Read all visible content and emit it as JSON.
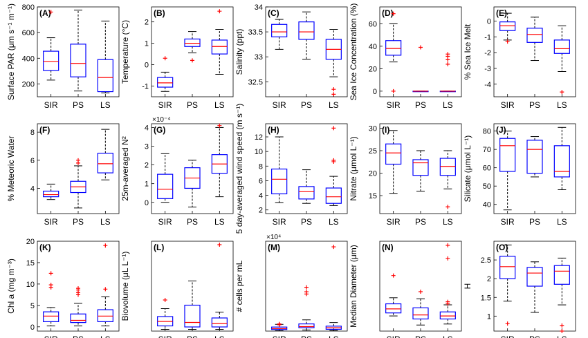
{
  "figure": {
    "colors": {
      "box": "#0000ff",
      "median": "#ff0000",
      "outlier": "#ff0000",
      "whisker": "#000000",
      "axis": "#000000"
    }
  },
  "chart_data": [
    {
      "id": "A",
      "label": "(A)",
      "type": "box",
      "ylabel": "Surface PAR (μm s⁻¹ m⁻¹)",
      "categories": [
        "SIR",
        "PS",
        "LS"
      ],
      "ylim": [
        100,
        800
      ],
      "yticks": [
        200,
        400,
        600,
        800
      ],
      "boxes": [
        {
          "whislo": 230,
          "q1": 305,
          "med": 375,
          "q3": 455,
          "whishi": 560,
          "fliers": [
            760
          ]
        },
        {
          "whislo": 145,
          "q1": 255,
          "med": 360,
          "q3": 510,
          "whishi": 775,
          "fliers": []
        },
        {
          "whislo": 130,
          "q1": 140,
          "med": 250,
          "q3": 390,
          "whishi": 690,
          "fliers": []
        }
      ]
    },
    {
      "id": "B",
      "label": "(B)",
      "type": "box",
      "ylabel": "Temperature (°C)",
      "categories": [
        "SIR",
        "PS",
        "LS"
      ],
      "ylim": [
        -1.5,
        2.7
      ],
      "yticks": [
        -1,
        0,
        1,
        2
      ],
      "boxes": [
        {
          "whislo": -1.25,
          "q1": -1.05,
          "med": -0.85,
          "q3": -0.6,
          "whishi": -0.35,
          "fliers": [
            0.3
          ]
        },
        {
          "whislo": 0.55,
          "q1": 0.85,
          "med": 1.0,
          "q3": 1.2,
          "whishi": 1.55,
          "fliers": [
            0.2
          ]
        },
        {
          "whislo": -0.45,
          "q1": 0.5,
          "med": 0.85,
          "q3": 1.15,
          "whishi": 1.65,
          "fliers": [
            2.5
          ]
        }
      ]
    },
    {
      "id": "C",
      "label": "(C)",
      "type": "box",
      "ylabel": "Salinity (ppt)",
      "categories": [
        "SIR",
        "PS",
        "LS"
      ],
      "ylim": [
        32.2,
        34
      ],
      "yticks": [
        32.5,
        33,
        33.5,
        34
      ],
      "boxes": [
        {
          "whislo": 33.15,
          "q1": 33.4,
          "med": 33.5,
          "q3": 33.65,
          "whishi": 33.75,
          "fliers": []
        },
        {
          "whislo": 32.95,
          "q1": 33.35,
          "med": 33.5,
          "q3": 33.7,
          "whishi": 33.9,
          "fliers": []
        },
        {
          "whislo": 32.6,
          "q1": 32.95,
          "med": 33.15,
          "q3": 33.35,
          "whishi": 33.55,
          "fliers": [
            32.35,
            32.25
          ]
        }
      ]
    },
    {
      "id": "D",
      "label": "(D)",
      "type": "box",
      "ylabel": "Sea Ice Concentration (%)",
      "categories": [
        "SIR",
        "PS",
        "LS"
      ],
      "ylim": [
        -5,
        75
      ],
      "yticks": [
        0,
        20,
        40,
        60
      ],
      "boxes": [
        {
          "whislo": 26,
          "q1": 32,
          "med": 38,
          "q3": 45,
          "whishi": 60,
          "fliers": [
            69,
            0
          ]
        },
        {
          "whislo": 0,
          "q1": 0,
          "med": 0,
          "q3": 0,
          "whishi": 0,
          "fliers": [
            39
          ]
        },
        {
          "whislo": 0,
          "q1": 0,
          "med": 0,
          "q3": 0,
          "whishi": 0,
          "fliers": [
            33,
            31,
            28,
            24
          ]
        }
      ]
    },
    {
      "id": "E",
      "label": "(E)",
      "type": "box",
      "ylabel": "% Sea Ice Melt",
      "categories": [
        "SIR",
        "PS",
        "LS"
      ],
      "ylim": [
        -4.8,
        0.9
      ],
      "yticks": [
        -4,
        -3,
        -2,
        -1,
        0
      ],
      "boxes": [
        {
          "whislo": -1.2,
          "q1": -0.6,
          "med": -0.3,
          "q3": -0.05,
          "whishi": 0.5,
          "fliers": [
            -1.3
          ]
        },
        {
          "whislo": -2.5,
          "q1": -1.35,
          "med": -0.85,
          "q3": -0.45,
          "whishi": 0.25,
          "fliers": []
        },
        {
          "whislo": -3.2,
          "q1": -2.05,
          "med": -1.75,
          "q3": -1.2,
          "whishi": -0.3,
          "fliers": [
            -4.5
          ]
        }
      ]
    },
    {
      "id": "F",
      "label": "(F)",
      "type": "box",
      "ylabel": "% Meteoric Water",
      "categories": [
        "SIR",
        "PS",
        "LS"
      ],
      "ylim": [
        2.2,
        8.6
      ],
      "yticks": [
        4,
        6,
        8
      ],
      "boxes": [
        {
          "whislo": 3.2,
          "q1": 3.4,
          "med": 3.55,
          "q3": 3.8,
          "whishi": 4.3,
          "fliers": []
        },
        {
          "whislo": 2.6,
          "q1": 3.7,
          "med": 4.1,
          "q3": 4.5,
          "whishi": 5.6,
          "fliers": [
            6.0,
            5.8
          ]
        },
        {
          "whislo": 4.6,
          "q1": 5.1,
          "med": 5.75,
          "q3": 6.5,
          "whishi": 8.2,
          "fliers": []
        }
      ]
    },
    {
      "id": "G",
      "label": "(G)",
      "type": "box",
      "ylabel": "25m-averaged N²",
      "multiplier": "×10⁻⁴",
      "categories": [
        "SIR",
        "PS",
        "LS"
      ],
      "ylim": [
        -0.6,
        4.2
      ],
      "yticks": [
        0,
        1,
        2,
        3,
        4
      ],
      "boxes": [
        {
          "whislo": 0.0,
          "q1": 0.2,
          "med": 0.7,
          "q3": 1.5,
          "whishi": 2.6,
          "fliers": []
        },
        {
          "whislo": -0.25,
          "q1": 0.75,
          "med": 1.3,
          "q3": 1.85,
          "whishi": 2.25,
          "fliers": []
        },
        {
          "whislo": 0.3,
          "q1": 1.55,
          "med": 2.05,
          "q3": 2.55,
          "whishi": 4.0,
          "fliers": [
            4.1
          ]
        }
      ]
    },
    {
      "id": "H",
      "label": "(H)",
      "type": "box",
      "ylabel": "5 day-averaged wind speed (m s⁻¹)",
      "categories": [
        "SIR",
        "PS",
        "LS"
      ],
      "ylim": [
        1.5,
        13.8
      ],
      "yticks": [
        2,
        4,
        6,
        8,
        10,
        12
      ],
      "boxes": [
        {
          "whislo": 3.0,
          "q1": 4.2,
          "med": 6.2,
          "q3": 7.6,
          "whishi": 12.0,
          "fliers": []
        },
        {
          "whislo": 2.9,
          "q1": 3.5,
          "med": 4.5,
          "q3": 5.2,
          "whishi": 7.5,
          "fliers": []
        },
        {
          "whislo": 2.6,
          "q1": 2.9,
          "med": 3.8,
          "q3": 5.0,
          "whishi": 6.6,
          "fliers": [
            13.2,
            8.8,
            8.6
          ]
        }
      ]
    },
    {
      "id": "I",
      "label": "(I)",
      "type": "box",
      "ylabel": "Nitrate (μmol L⁻¹)",
      "categories": [
        "SIR",
        "PS",
        "LS"
      ],
      "ylim": [
        11,
        31
      ],
      "yticks": [
        15,
        20,
        25,
        30
      ],
      "boxes": [
        {
          "whislo": 15.5,
          "q1": 22.0,
          "med": 24.5,
          "q3": 26.5,
          "whishi": 29.5,
          "fliers": []
        },
        {
          "whislo": 16.0,
          "q1": 19.5,
          "med": 22.3,
          "q3": 23.0,
          "whishi": 25.0,
          "fliers": []
        },
        {
          "whislo": 16.5,
          "q1": 19.5,
          "med": 21.5,
          "q3": 23.3,
          "whishi": 25.0,
          "fliers": [
            12.5
          ]
        }
      ]
    },
    {
      "id": "J",
      "label": "(J)",
      "type": "box",
      "ylabel": "Silicate (μmol L⁻¹)",
      "categories": [
        "SIR",
        "PS",
        "LS"
      ],
      "ylim": [
        35,
        84
      ],
      "yticks": [
        40,
        50,
        60,
        70,
        80
      ],
      "boxes": [
        {
          "whislo": 37,
          "q1": 58,
          "med": 72,
          "q3": 76,
          "whishi": 80,
          "fliers": []
        },
        {
          "whislo": 55,
          "q1": 57,
          "med": 70,
          "q3": 75,
          "whishi": 77,
          "fliers": []
        },
        {
          "whislo": 48,
          "q1": 55,
          "med": 58,
          "q3": 72,
          "whishi": 82,
          "fliers": []
        }
      ]
    },
    {
      "id": "K",
      "label": "(K)",
      "type": "box",
      "ylabel": "Chl a (mg m⁻³)",
      "categories": [
        "SIR",
        "PS",
        "LS"
      ],
      "ylim": [
        -1,
        20
      ],
      "yticks": [
        0,
        5,
        10,
        15,
        20
      ],
      "boxes": [
        {
          "whislo": 0.2,
          "q1": 1.2,
          "med": 2.5,
          "q3": 3.5,
          "whishi": 4.5,
          "fliers": [
            12.5,
            9.8,
            9.2
          ]
        },
        {
          "whislo": 0.2,
          "q1": 1.0,
          "med": 1.5,
          "q3": 3.0,
          "whishi": 5.5,
          "fliers": [
            9.0,
            8.6,
            8.0,
            7.5
          ]
        },
        {
          "whislo": 0.2,
          "q1": 1.2,
          "med": 2.5,
          "q3": 4.0,
          "whishi": 7.0,
          "fliers": [
            19.0,
            8.8
          ]
        }
      ]
    },
    {
      "id": "L",
      "label": "(L)",
      "type": "box",
      "ylabel": "Biovolume (μL L⁻¹)",
      "categories": [
        "SIR",
        "PS",
        "LS"
      ],
      "ylim": [
        0,
        2.6
      ],
      "yticks": [],
      "boxes": [
        {
          "whislo": 0.05,
          "q1": 0.15,
          "med": 0.28,
          "q3": 0.42,
          "whishi": 0.65,
          "fliers": [
            0.9
          ]
        },
        {
          "whislo": 0.05,
          "q1": 0.12,
          "med": 0.25,
          "q3": 0.75,
          "whishi": 1.45,
          "fliers": []
        },
        {
          "whislo": 0.05,
          "q1": 0.12,
          "med": 0.22,
          "q3": 0.38,
          "whishi": 0.55,
          "fliers": [
            2.5
          ]
        }
      ]
    },
    {
      "id": "M",
      "label": "(M)",
      "type": "box",
      "ylabel": "# cells per mL",
      "multiplier": "×10⁴",
      "categories": [
        "SIR",
        "PS",
        "LS"
      ],
      "ylim": [
        0,
        4
      ],
      "yticks": [],
      "boxes": [
        {
          "whislo": 0.02,
          "q1": 0.07,
          "med": 0.11,
          "q3": 0.18,
          "whishi": 0.3,
          "fliers": [
            0.32,
            0.28
          ]
        },
        {
          "whislo": 0.05,
          "q1": 0.15,
          "med": 0.2,
          "q3": 0.32,
          "whishi": 0.5,
          "fliers": [
            1.95,
            1.75,
            1.65
          ]
        },
        {
          "whislo": 0.03,
          "q1": 0.08,
          "med": 0.15,
          "q3": 0.22,
          "whishi": 0.38,
          "fliers": [
            3.75
          ]
        }
      ]
    },
    {
      "id": "N",
      "label": "(N)",
      "type": "box",
      "ylabel": "Median Diameter (μm)",
      "categories": [
        "SIR",
        "PS",
        "LS"
      ],
      "ylim": [
        4.3,
        13.2
      ],
      "yticks": [],
      "boxes": [
        {
          "whislo": 5.8,
          "q1": 6.1,
          "med": 6.5,
          "q3": 7.0,
          "whishi": 7.6,
          "fliers": [
            9.8
          ]
        },
        {
          "whislo": 4.9,
          "q1": 5.5,
          "med": 5.9,
          "q3": 6.6,
          "whishi": 7.5,
          "fliers": [
            8.2
          ]
        },
        {
          "whislo": 5.0,
          "q1": 5.5,
          "med": 5.8,
          "q3": 6.2,
          "whishi": 6.9,
          "fliers": [
            12.8,
            11.5,
            7.2,
            7.0
          ]
        }
      ]
    },
    {
      "id": "O",
      "label": "(O)",
      "type": "box",
      "ylabel": "H",
      "categories": [
        "SIR",
        "PS",
        "LS"
      ],
      "ylim": [
        0.6,
        3.0
      ],
      "yticks": [
        1,
        1.5,
        2,
        2.5
      ],
      "boxes": [
        {
          "whislo": 1.4,
          "q1": 2.0,
          "med": 2.32,
          "q3": 2.6,
          "whishi": 2.9,
          "fliers": [
            0.8
          ]
        },
        {
          "whislo": 1.1,
          "q1": 1.8,
          "med": 2.15,
          "q3": 2.3,
          "whishi": 2.45,
          "fliers": []
        },
        {
          "whislo": 1.3,
          "q1": 1.85,
          "med": 2.2,
          "q3": 2.35,
          "whishi": 2.55,
          "fliers": [
            0.75,
            0.6
          ]
        }
      ]
    }
  ]
}
